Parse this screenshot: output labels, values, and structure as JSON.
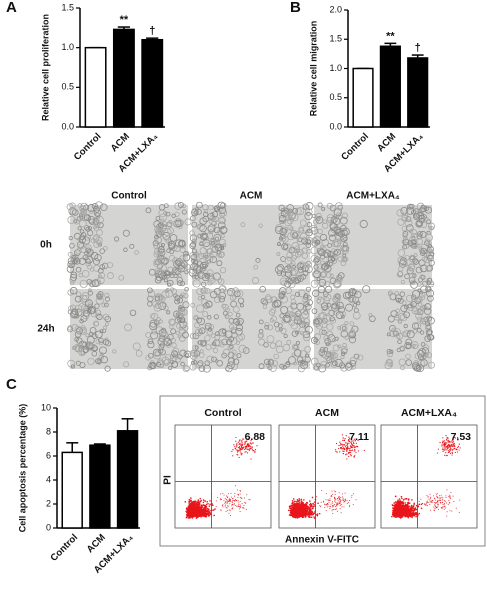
{
  "chart_data": [
    {
      "type": "bar",
      "panel": "A",
      "ylabel": "Relative cell proliferation",
      "categories": [
        "Control",
        "ACM",
        "ACM+LXA₄"
      ],
      "values": [
        1.0,
        1.23,
        1.1
      ],
      "errors": [
        0,
        0.03,
        0.02
      ],
      "annotations": [
        null,
        "**",
        "†"
      ],
      "colors": [
        "#ffffff",
        "#000000",
        "#000000"
      ],
      "ylim": [
        0,
        1.5
      ],
      "yticks": [
        {
          "value": 0,
          "label": "0.0"
        },
        0.5,
        {
          "value": 1,
          "label": "1.0"
        },
        1.5
      ]
    },
    {
      "type": "bar",
      "panel": "B",
      "ylabel": "Relative cell migration",
      "categories": [
        "Control",
        "ACM",
        "ACM+LXA₄"
      ],
      "values": [
        1.0,
        1.38,
        1.18
      ],
      "errors": [
        0,
        0.05,
        0.05
      ],
      "annotations": [
        null,
        "**",
        "†"
      ],
      "colors": [
        "#ffffff",
        "#000000",
        "#000000"
      ],
      "ylim": [
        0,
        2
      ],
      "yticks": [
        {
          "value": 0,
          "label": "0.0"
        },
        0.5,
        {
          "value": 1,
          "label": "1.0"
        },
        1.5,
        {
          "value": 2,
          "label": "2.0"
        }
      ]
    },
    {
      "type": "bar",
      "panel": "C",
      "ylabel": "Cell apoptosis percentage (%)",
      "categories": [
        "Control",
        "ACM",
        "ACM+LXA₄"
      ],
      "values": [
        6.3,
        6.9,
        8.1
      ],
      "errors": [
        0.8,
        0.1,
        1.0
      ],
      "colors": [
        "#ffffff",
        "#000000",
        "#000000"
      ],
      "ylim": [
        0,
        10
      ],
      "yticks": [
        0,
        2,
        4,
        6,
        8,
        10
      ]
    }
  ],
  "microscopy": {
    "columns": [
      "Control",
      "ACM",
      "ACM+LXA₄"
    ],
    "rows": [
      "0h",
      "24h"
    ]
  },
  "flow": {
    "columns": [
      "Control",
      "ACM",
      "ACM+LXA₄"
    ],
    "quadrant_labels": [
      "6.88",
      "7.11",
      "7.53"
    ],
    "xlabel": "Annexin V-FITC",
    "ylabel": "PI"
  }
}
